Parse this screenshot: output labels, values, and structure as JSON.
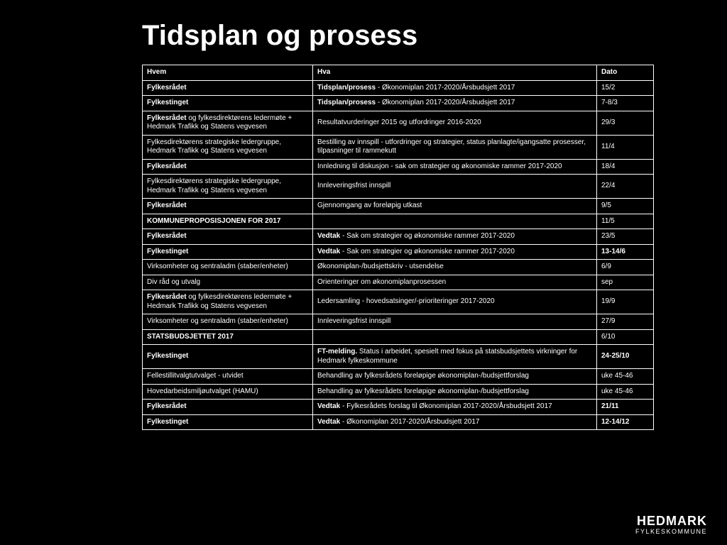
{
  "title": "Tidsplan og prosess",
  "columns": {
    "hvem": "Hvem",
    "hva": "Hva",
    "dato": "Dato"
  },
  "rows": [
    {
      "hvem_html": "<span class='b'>Fylkesrådet</span>",
      "hva_html": "<span class='b'>Tidsplan/prosess</span> - Økonomiplan 2017-2020/Årsbudsjett 2017",
      "dato": "15/2",
      "group_start": false
    },
    {
      "hvem_html": "<span class='b'>Fylkestinget</span>",
      "hva_html": "<span class='b'>Tidsplan/prosess</span> - Økonomiplan 2017-2020/Årsbudsjett 2017",
      "dato": "7-8/3",
      "group_start": false
    },
    {
      "hvem_html": "<span class='b'>Fylkesrådet</span> og fylkesdirektørens ledermøte + Hedmark Trafikk og Statens vegvesen",
      "hva_html": "Resultatvurderinger 2015 og utfordringer 2016-2020",
      "dato": "29/3",
      "group_start": false
    },
    {
      "hvem_html": "Fylkesdirektørens strategiske ledergruppe, Hedmark Trafikk og Statens vegvesen",
      "hva_html": "Bestilling av innspill - utfordringer og strategier, status planlagte/igangsatte prosesser, tilpasninger til rammekutt",
      "dato": "11/4",
      "group_start": false
    },
    {
      "hvem_html": "<span class='b'>Fylkesrådet</span>",
      "hva_html": "Innledning til diskusjon - sak om strategier og økonomiske rammer 2017-2020",
      "dato": "18/4",
      "group_start": false
    },
    {
      "hvem_html": "Fylkesdirektørens strategiske ledergruppe, Hedmark Trafikk og Statens vegvesen",
      "hva_html": "Innleveringsfrist innspill",
      "dato": "22/4",
      "group_start": false
    },
    {
      "hvem_html": "<span class='b'>Fylkesrådet</span>",
      "hva_html": "Gjennomgang av foreløpig utkast",
      "dato": "9/5",
      "group_start": false
    },
    {
      "hvem_html": "<span class='b'>KOMMUNEPROPOSISJONEN FOR 2017</span>",
      "hva_html": "",
      "dato": "11/5",
      "group_start": false
    },
    {
      "hvem_html": "<span class='b'>Fylkesrådet</span>",
      "hva_html": "<span class='b'>Vedtak</span> - Sak om strategier og økonomiske rammer 2017-2020",
      "dato": "23/5",
      "group_start": false
    },
    {
      "hvem_html": "<span class='b'>Fylkestinget</span>",
      "hva_html": "<span class='b'>Vedtak</span> - Sak om strategier og økonomiske rammer 2017-2020",
      "dato": "13-14/6",
      "dato_bold": true,
      "group_start": false
    },
    {
      "hvem_html": "Virksomheter og sentraladm (staber/enheter)",
      "hva_html": "Økonomiplan-/budsjettskriv - utsendelse",
      "dato": "6/9",
      "group_start": true
    },
    {
      "hvem_html": "Div råd og utvalg",
      "hva_html": "Orienteringer om økonomiplanprosessen",
      "dato": "sep",
      "group_start": false
    },
    {
      "hvem_html": "<span class='b'>Fylkesrådet</span> og fylkesdirektørens ledermøte + Hedmark Trafikk og Statens vegvesen",
      "hva_html": "Ledersamling - hovedsatsinger/-prioriteringer 2017-2020",
      "dato": "19/9",
      "group_start": false
    },
    {
      "hvem_html": "Virksomheter og sentraladm (staber/enheter)",
      "hva_html": "Innleveringsfrist innspill",
      "dato": "27/9",
      "group_start": false
    },
    {
      "hvem_html": "<span class='b'>STATSBUDSJETTET 2017</span>",
      "hva_html": "",
      "dato": "6/10",
      "group_start": false
    },
    {
      "hvem_html": "<span class='b'>Fylkestinget</span>",
      "hva_html": "<span class='b'>FT-melding.</span> Status i arbeidet, spesielt med fokus på statsbudsjettets virkninger for Hedmark fylkeskommune",
      "dato": "24-25/10",
      "dato_bold": true,
      "group_start": false
    },
    {
      "hvem_html": "Fellestillitvalgtutvalget - utvidet",
      "hva_html": "Behandling av fylkesrådets foreløpige økonomiplan-/budsjettforslag",
      "dato": "uke 45-46",
      "group_start": false
    },
    {
      "hvem_html": "Hovedarbeidsmiljøutvalget (HAMU)",
      "hva_html": "Behandling av fylkesrådets foreløpige økonomiplan-/budsjettforslag",
      "dato": "uke 45-46",
      "group_start": false
    },
    {
      "hvem_html": "<span class='b'>Fylkesrådet</span>",
      "hva_html": "<span class='b'>Vedtak</span> - Fylkesrådets forslag til Økonomiplan 2017-2020/Årsbudsjett 2017",
      "dato": "21/11",
      "dato_bold": true,
      "group_start": false
    },
    {
      "hvem_html": "<span class='b'>Fylkestinget</span>",
      "hva_html": "<span class='b'>Vedtak</span> - Økonomiplan 2017-2020/Årsbudsjett 2017",
      "dato": "12-14/12",
      "dato_bold": true,
      "group_start": false
    }
  ],
  "footer": {
    "brand": "HEDMARK",
    "sub": "FYLKESKOMMUNE"
  }
}
